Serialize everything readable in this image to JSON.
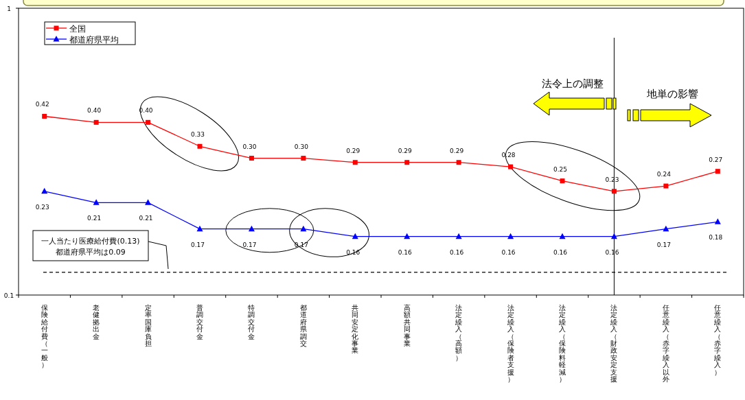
{
  "chart_data": {
    "type": "line",
    "categories": [
      "保険給付費（一般）",
      "老健拠出金",
      "定率国庫負担",
      "普調交付金",
      "特調交付金",
      "都道府県調交",
      "共同安定化事業",
      "高額共同事業",
      "法定繰入（高額）",
      "法定繰入（保険者支援）",
      "法定繰入（保険料軽減）",
      "法定繰入（財政安定支援",
      "任意繰入（赤字繰入以外",
      "任意繰入（赤字繰入）"
    ],
    "series": [
      {
        "name": "全国",
        "color": "#ff0000",
        "marker": "square",
        "values": [
          0.42,
          0.4,
          0.4,
          0.33,
          0.3,
          0.3,
          0.29,
          0.29,
          0.29,
          0.28,
          0.25,
          0.23,
          0.24,
          0.27
        ],
        "value_labels": [
          "0.42",
          "0.40",
          "0.40",
          "0.33",
          "0.30",
          "0.30",
          "0.29",
          "0.29",
          "0.29",
          "0.28",
          "0.25",
          "0.23",
          "0.24",
          "0.27"
        ]
      },
      {
        "name": "都道府県平均",
        "color": "#0000ff",
        "marker": "triangle",
        "values": [
          0.23,
          0.21,
          0.21,
          0.17,
          0.17,
          0.17,
          0.16,
          0.16,
          0.16,
          0.16,
          0.16,
          0.16,
          0.17,
          0.18
        ],
        "value_labels": [
          "0.23",
          "0.21",
          "0.21",
          "0.17",
          "0.17",
          "0.17",
          "0.16",
          "0.16",
          "0.16",
          "0.16",
          "0.16",
          "0.16",
          "0.17",
          "0.18"
        ]
      }
    ],
    "log": true,
    "ylim": [
      0.1,
      1
    ],
    "yticks": [
      0.1,
      1
    ],
    "legend": "top left",
    "grid": false,
    "ref_lines": [
      {
        "axis": "y",
        "value": 0.12,
        "label": "一人当たり医療給付費(0.13)\n都道府県平均は0.09",
        "color": "#000000",
        "line_style": "dashed"
      },
      {
        "axis": "x",
        "value": "法定繰入（財政安定支援",
        "color": "#000000",
        "line_style": "solid"
      }
    ],
    "annotations": [
      "法令上の調整",
      "地単の影響"
    ]
  }
}
